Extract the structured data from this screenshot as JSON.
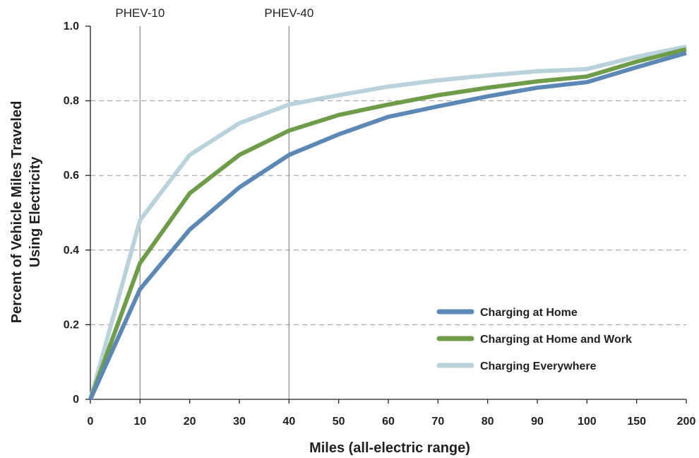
{
  "chart_data": {
    "type": "line",
    "xlabel": "Miles (all-electric range)",
    "ylabel_lines": [
      "Percent of Vehicle Miles Traveled",
      "Using Electricity"
    ],
    "x": [
      "0",
      "10",
      "20",
      "30",
      "40",
      "50",
      "60",
      "70",
      "80",
      "90",
      "100",
      "150",
      "200"
    ],
    "ylim": [
      0,
      1.0
    ],
    "yticks": [
      "0",
      "0.2",
      "0.4",
      "0.6",
      "0.8",
      "1.0"
    ],
    "y_tick_values": [
      0,
      0.2,
      0.4,
      0.6,
      0.8,
      1.0
    ],
    "grid": "horizontal-dashed",
    "legend_position": "bottom-right",
    "reference_lines": [
      {
        "x": "10",
        "label": "PHEV-10"
      },
      {
        "x": "40",
        "label": "PHEV-40"
      }
    ],
    "series": [
      {
        "name": "Charging Everywhere",
        "color": "#b9d2dc",
        "values": [
          0,
          0.48,
          0.655,
          0.74,
          0.79,
          0.815,
          0.838,
          0.855,
          0.868,
          0.879,
          0.885,
          0.918,
          0.945
        ]
      },
      {
        "name": "Charging at Home and Work",
        "color": "#6e9c48",
        "values": [
          0,
          0.365,
          0.552,
          0.655,
          0.72,
          0.762,
          0.79,
          0.815,
          0.835,
          0.852,
          0.865,
          0.905,
          0.938
        ]
      },
      {
        "name": "Charging at Home",
        "color": "#5b88b5",
        "values": [
          0,
          0.295,
          0.455,
          0.568,
          0.655,
          0.71,
          0.757,
          0.785,
          0.812,
          0.835,
          0.85,
          0.89,
          0.928
        ]
      }
    ],
    "legend_order": [
      "Charging at Home",
      "Charging at Home and Work",
      "Charging Everywhere"
    ]
  }
}
